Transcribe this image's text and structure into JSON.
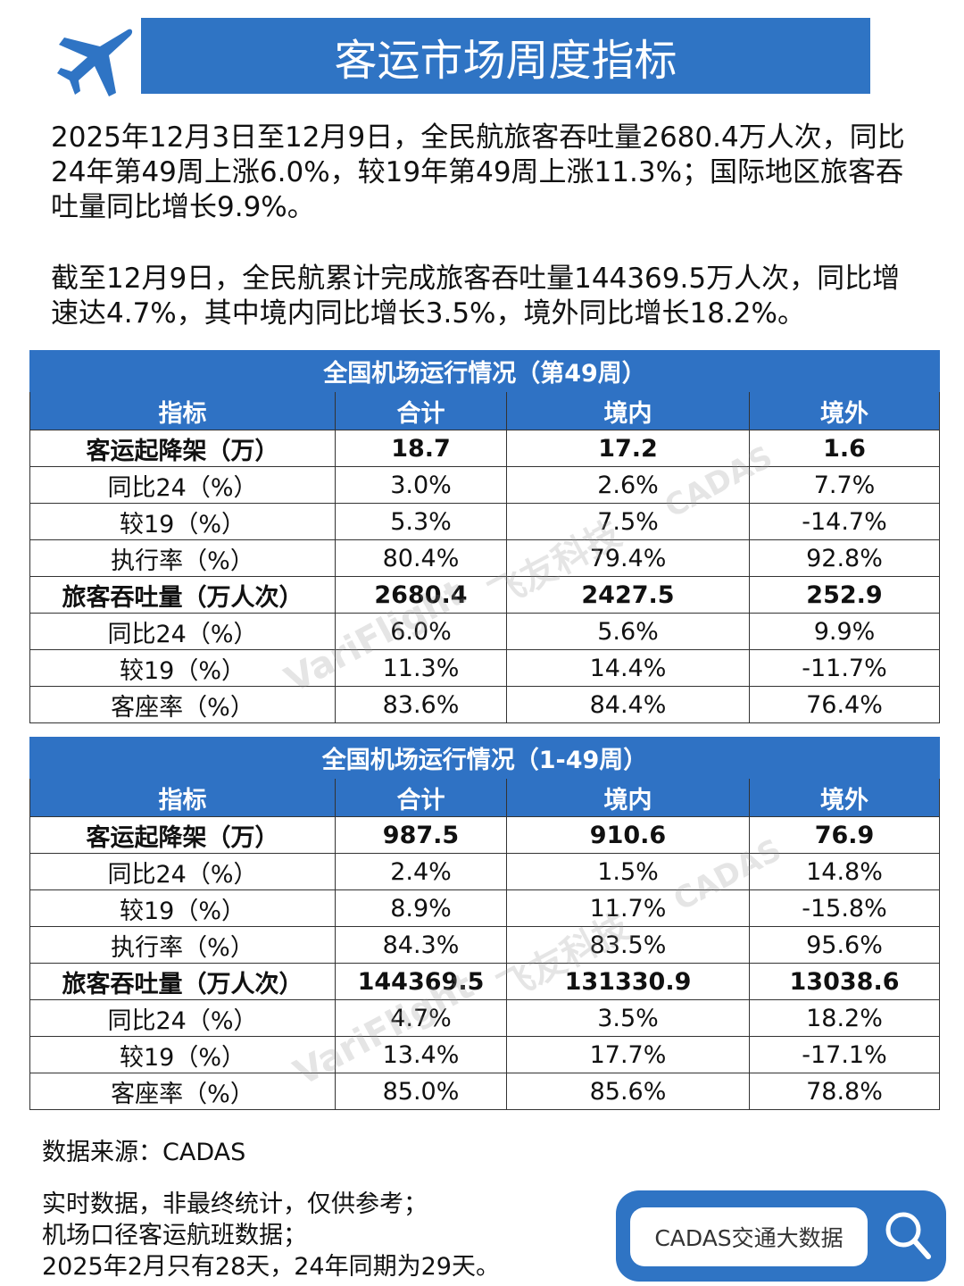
{
  "header": {
    "title": "客运市场周度指标"
  },
  "paragraphs": [
    "2025年12月3日至12月9日，全民航旅客吞吐量2680.4万人次，同比24年第49周上涨6.0%，较19年第49周上涨11.3%；国际地区旅客吞吐量同比增长9.9%。",
    "截至12月9日，全民航累计完成旅客吞吐量144369.5万人次，同比增速达4.7%，其中境内同比增长3.5%，境外同比增长18.2%。"
  ],
  "tables": [
    {
      "title": "全国机场运行情况（第49周）",
      "columns": [
        "指标",
        "合计",
        "境内",
        "境外"
      ],
      "rows": [
        [
          "客运起降架（万）",
          "18.7",
          "17.2",
          "1.6"
        ],
        [
          "同比24（%）",
          "3.0%",
          "2.6%",
          "7.7%"
        ],
        [
          "较19（%）",
          "5.3%",
          "7.5%",
          "-14.7%"
        ],
        [
          "执行率（%）",
          "80.4%",
          "79.4%",
          "92.8%"
        ],
        [
          "旅客吞吐量（万人次）",
          "2680.4",
          "2427.5",
          "252.9"
        ],
        [
          "同比24（%）",
          "6.0%",
          "5.6%",
          "9.9%"
        ],
        [
          "较19（%）",
          "11.3%",
          "14.4%",
          "-11.7%"
        ],
        [
          "客座率（%）",
          "83.6%",
          "84.4%",
          "76.4%"
        ]
      ]
    },
    {
      "title": "全国机场运行情况（1-49周）",
      "columns": [
        "指标",
        "合计",
        "境内",
        "境外"
      ],
      "rows": [
        [
          "客运起降架（万）",
          "987.5",
          "910.6",
          "76.9"
        ],
        [
          "同比24（%）",
          "2.4%",
          "1.5%",
          "14.8%"
        ],
        [
          "较19（%）",
          "8.9%",
          "11.7%",
          "-15.8%"
        ],
        [
          "执行率（%）",
          "84.3%",
          "83.5%",
          "95.6%"
        ],
        [
          "旅客吞吐量（万人次）",
          "144369.5",
          "131330.9",
          "13038.6"
        ],
        [
          "同比24（%）",
          "4.7%",
          "3.5%",
          "18.2%"
        ],
        [
          "较19（%）",
          "13.4%",
          "17.7%",
          "-17.1%"
        ],
        [
          "客座率（%）",
          "85.0%",
          "85.6%",
          "78.8%"
        ]
      ]
    }
  ],
  "watermark": [
    "VariFlight",
    "飞友科技",
    "CADAS"
  ],
  "footer": {
    "source": "数据来源：CADAS",
    "notes": [
      "实时数据，非最终统计，仅供参考；",
      "机场口径客运航班数据；",
      "2025年2月只有28天，24年同期为29天。"
    ],
    "search": "CADAS交通大数据"
  }
}
